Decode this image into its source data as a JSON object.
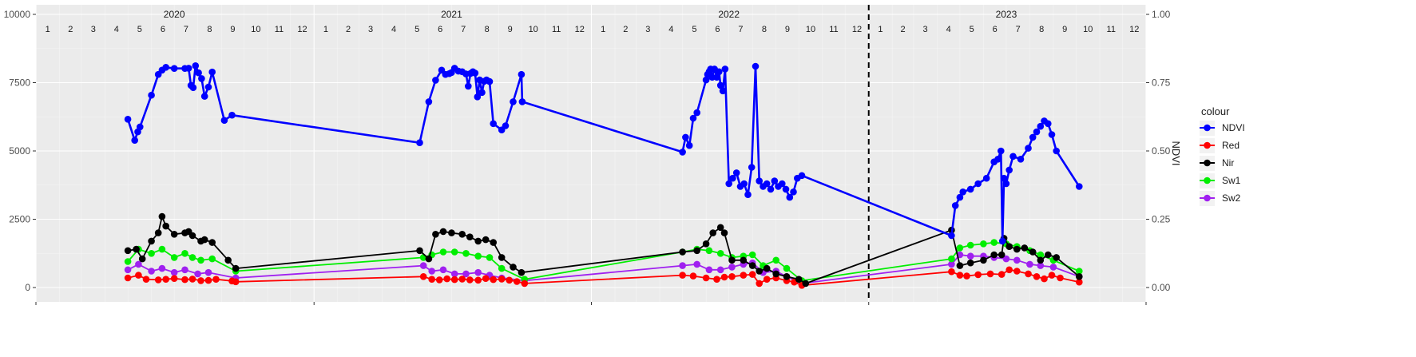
{
  "chart_data": {
    "type": "line",
    "title": "",
    "xlabel": "",
    "ylabel": "",
    "y2label": "NDVI",
    "ylim": [
      0,
      10000
    ],
    "y2lim": [
      0,
      1
    ],
    "yticks": [
      "0",
      "2500",
      "5000",
      "7500",
      "10000"
    ],
    "y2ticks": [
      "0.00",
      "0.25",
      "0.50",
      "0.75",
      "1.00"
    ],
    "grid": true,
    "legend_position": "right",
    "legend_title": "colour",
    "years": [
      "2020",
      "2021",
      "2022",
      "2023"
    ],
    "months": [
      "1",
      "2",
      "3",
      "4",
      "5",
      "6",
      "7",
      "8",
      "9",
      "10",
      "11",
      "12"
    ],
    "x_range": [
      "2020-01-01",
      "2024-01-01"
    ],
    "vline_date": "2023-01-01",
    "colors": {
      "NDVI": "#0000ff",
      "Red": "#ff0000",
      "Nir": "#000000",
      "Sw1": "#00ee00",
      "Sw2": "#a020f0"
    },
    "series": [
      {
        "name": "NDVI",
        "color": "#0000ff",
        "x": [
          "2020-05-01",
          "2020-05-10",
          "2020-05-14",
          "2020-05-17",
          "2020-06-01",
          "2020-06-10",
          "2020-06-15",
          "2020-06-20",
          "2020-07-01",
          "2020-07-15",
          "2020-07-20",
          "2020-07-23",
          "2020-07-26",
          "2020-07-29",
          "2020-08-02",
          "2020-08-06",
          "2020-08-10",
          "2020-08-15",
          "2020-08-20",
          "2020-09-05",
          "2020-09-15",
          "2021-05-20",
          "2021-06-01",
          "2021-06-10",
          "2021-06-18",
          "2021-06-23",
          "2021-06-28",
          "2021-07-01",
          "2021-07-05",
          "2021-07-10",
          "2021-07-15",
          "2021-07-20",
          "2021-07-23",
          "2021-07-26",
          "2021-07-29",
          "2021-08-01",
          "2021-08-04",
          "2021-08-07",
          "2021-08-10",
          "2021-08-13",
          "2021-08-16",
          "2021-08-20",
          "2021-08-25",
          "2021-09-05",
          "2021-09-10",
          "2021-09-20",
          "2021-10-01",
          "2021-10-02",
          "2022-05-01",
          "2022-05-05",
          "2022-05-10",
          "2022-05-15",
          "2022-05-20",
          "2022-06-01",
          "2022-06-03",
          "2022-06-05",
          "2022-06-07",
          "2022-06-09",
          "2022-06-12",
          "2022-06-15",
          "2022-06-18",
          "2022-06-20",
          "2022-06-23",
          "2022-06-26",
          "2022-07-01",
          "2022-07-06",
          "2022-07-11",
          "2022-07-16",
          "2022-07-21",
          "2022-07-26",
          "2022-07-31",
          "2022-08-05",
          "2022-08-10",
          "2022-08-15",
          "2022-08-20",
          "2022-08-25",
          "2022-08-30",
          "2022-09-04",
          "2022-09-09",
          "2022-09-14",
          "2022-09-19",
          "2022-09-24",
          "2022-09-29",
          "2022-10-05",
          "2023-04-20",
          "2023-04-25",
          "2023-05-01",
          "2023-05-05",
          "2023-05-15",
          "2023-05-25",
          "2023-06-05",
          "2023-06-15",
          "2023-06-20",
          "2023-06-24",
          "2023-06-26",
          "2023-06-28",
          "2023-07-01",
          "2023-07-05",
          "2023-07-10",
          "2023-07-20",
          "2023-07-30",
          "2023-08-05",
          "2023-08-10",
          "2023-08-15",
          "2023-08-20",
          "2023-08-25",
          "2023-08-30",
          "2023-09-05",
          "2023-10-05"
        ],
        "y": [
          0.616,
          0.539,
          0.57,
          0.588,
          0.704,
          0.78,
          0.796,
          0.806,
          0.802,
          0.802,
          0.803,
          0.74,
          0.732,
          0.812,
          0.786,
          0.765,
          0.7,
          0.734,
          0.789,
          0.612,
          0.631,
          0.53,
          0.68,
          0.759,
          0.796,
          0.78,
          0.783,
          0.787,
          0.803,
          0.792,
          0.79,
          0.782,
          0.737,
          0.784,
          0.79,
          0.785,
          0.698,
          0.76,
          0.714,
          0.755,
          0.76,
          0.754,
          0.6,
          0.577,
          0.592,
          0.68,
          0.78,
          0.68,
          0.496,
          0.55,
          0.52,
          0.62,
          0.64,
          0.76,
          0.78,
          0.79,
          0.8,
          0.77,
          0.8,
          0.77,
          0.79,
          0.74,
          0.72,
          0.8,
          0.38,
          0.4,
          0.42,
          0.37,
          0.38,
          0.34,
          0.44,
          0.81,
          0.39,
          0.37,
          0.38,
          0.36,
          0.39,
          0.37,
          0.38,
          0.36,
          0.33,
          0.35,
          0.4,
          0.41,
          0.19,
          0.3,
          0.33,
          0.35,
          0.36,
          0.38,
          0.4,
          0.46,
          0.47,
          0.5,
          0.17,
          0.4,
          0.38,
          0.43,
          0.48,
          0.47,
          0.51,
          0.55,
          0.57,
          0.59,
          0.61,
          0.6,
          0.56,
          0.5,
          0.37
        ]
      },
      {
        "name": "Red",
        "color": "#ff0000",
        "x": [
          "2020-05-01",
          "2020-05-15",
          "2020-05-25",
          "2020-06-10",
          "2020-06-20",
          "2020-07-01",
          "2020-07-15",
          "2020-07-25",
          "2020-08-05",
          "2020-08-15",
          "2020-08-25",
          "2020-09-15",
          "2020-09-20",
          "2021-05-25",
          "2021-06-05",
          "2021-06-15",
          "2021-06-25",
          "2021-07-05",
          "2021-07-15",
          "2021-07-25",
          "2021-08-05",
          "2021-08-15",
          "2021-08-25",
          "2021-09-05",
          "2021-09-15",
          "2021-09-25",
          "2021-10-05",
          "2022-05-01",
          "2022-05-15",
          "2022-06-01",
          "2022-06-15",
          "2022-06-25",
          "2022-07-05",
          "2022-07-20",
          "2022-08-01",
          "2022-08-10",
          "2022-08-20",
          "2022-09-01",
          "2022-09-15",
          "2022-09-25",
          "2022-10-05",
          "2023-04-20",
          "2023-05-01",
          "2023-05-10",
          "2023-05-25",
          "2023-06-10",
          "2023-06-25",
          "2023-07-05",
          "2023-07-15",
          "2023-07-30",
          "2023-08-10",
          "2023-08-20",
          "2023-08-30",
          "2023-09-10",
          "2023-10-05"
        ],
        "y": [
          350,
          450,
          300,
          280,
          300,
          330,
          290,
          310,
          250,
          260,
          300,
          240,
          210,
          400,
          300,
          280,
          320,
          290,
          310,
          280,
          270,
          330,
          290,
          310,
          270,
          220,
          150,
          450,
          420,
          350,
          300,
          380,
          400,
          450,
          480,
          150,
          300,
          350,
          250,
          200,
          80,
          580,
          450,
          420,
          470,
          500,
          480,
          650,
          600,
          500,
          400,
          320,
          450,
          350,
          200
        ]
      },
      {
        "name": "Nir",
        "color": "#000000",
        "x": [
          "2020-05-01",
          "2020-05-12",
          "2020-05-20",
          "2020-06-01",
          "2020-06-10",
          "2020-06-15",
          "2020-06-20",
          "2020-07-01",
          "2020-07-15",
          "2020-07-20",
          "2020-07-25",
          "2020-08-05",
          "2020-08-10",
          "2020-08-20",
          "2020-09-10",
          "2020-09-20",
          "2021-05-20",
          "2021-06-01",
          "2021-06-10",
          "2021-06-20",
          "2021-07-01",
          "2021-07-15",
          "2021-07-25",
          "2021-08-05",
          "2021-08-15",
          "2021-08-25",
          "2021-09-05",
          "2021-09-20",
          "2021-10-01",
          "2022-05-01",
          "2022-05-20",
          "2022-06-01",
          "2022-06-10",
          "2022-06-20",
          "2022-06-25",
          "2022-07-05",
          "2022-07-20",
          "2022-08-01",
          "2022-08-10",
          "2022-08-20",
          "2022-09-01",
          "2022-09-15",
          "2022-10-01",
          "2022-10-10",
          "2023-04-20",
          "2023-05-01",
          "2023-05-15",
          "2023-06-01",
          "2023-06-15",
          "2023-06-25",
          "2023-06-28",
          "2023-07-05",
          "2023-07-15",
          "2023-07-25",
          "2023-08-05",
          "2023-08-15",
          "2023-08-25",
          "2023-09-05",
          "2023-10-05"
        ],
        "y": [
          1350,
          1400,
          1050,
          1700,
          2000,
          2600,
          2250,
          1950,
          2000,
          2050,
          1900,
          1700,
          1750,
          1650,
          1000,
          700,
          1350,
          1050,
          1950,
          2050,
          2000,
          1950,
          1850,
          1700,
          1750,
          1650,
          1100,
          750,
          550,
          1300,
          1350,
          1600,
          2000,
          2200,
          2000,
          1000,
          1000,
          800,
          600,
          700,
          500,
          400,
          300,
          150,
          2100,
          800,
          900,
          1000,
          1200,
          1200,
          1800,
          1500,
          1400,
          1450,
          1300,
          1000,
          1200,
          1100,
          400
        ]
      },
      {
        "name": "Sw1",
        "color": "#00ee00",
        "x": [
          "2020-05-01",
          "2020-05-15",
          "2020-06-01",
          "2020-06-15",
          "2020-07-01",
          "2020-07-15",
          "2020-07-25",
          "2020-08-05",
          "2020-08-20",
          "2020-09-20",
          "2021-05-25",
          "2021-06-05",
          "2021-06-20",
          "2021-07-05",
          "2021-07-20",
          "2021-08-05",
          "2021-08-20",
          "2021-09-05",
          "2021-10-05",
          "2022-05-01",
          "2022-05-20",
          "2022-06-05",
          "2022-06-20",
          "2022-07-05",
          "2022-07-20",
          "2022-08-01",
          "2022-08-15",
          "2022-09-01",
          "2022-09-15",
          "2022-10-05",
          "2023-04-20",
          "2023-05-01",
          "2023-05-15",
          "2023-06-01",
          "2023-06-15",
          "2023-07-01",
          "2023-07-15",
          "2023-08-01",
          "2023-08-15",
          "2023-09-01",
          "2023-10-05"
        ],
        "y": [
          950,
          1400,
          1250,
          1400,
          1100,
          1250,
          1100,
          1000,
          1050,
          600,
          1100,
          1200,
          1300,
          1300,
          1250,
          1150,
          1100,
          700,
          300,
          1300,
          1400,
          1350,
          1250,
          1100,
          1150,
          1200,
          800,
          1000,
          700,
          250,
          1050,
          1450,
          1550,
          1600,
          1650,
          1600,
          1500,
          1350,
          1200,
          1000,
          600
        ]
      },
      {
        "name": "Sw2",
        "color": "#a020f0",
        "x": [
          "2020-05-01",
          "2020-05-15",
          "2020-06-01",
          "2020-06-15",
          "2020-07-01",
          "2020-07-15",
          "2020-08-01",
          "2020-08-15",
          "2020-09-20",
          "2021-05-25",
          "2021-06-05",
          "2021-06-20",
          "2021-07-05",
          "2021-07-20",
          "2021-08-05",
          "2021-08-20",
          "2021-09-05",
          "2021-10-05",
          "2022-05-01",
          "2022-05-20",
          "2022-06-05",
          "2022-06-20",
          "2022-07-05",
          "2022-07-20",
          "2022-08-01",
          "2022-08-15",
          "2022-09-01",
          "2022-09-15",
          "2022-10-05",
          "2023-04-20",
          "2023-05-01",
          "2023-05-15",
          "2023-06-01",
          "2023-06-15",
          "2023-07-01",
          "2023-07-15",
          "2023-08-01",
          "2023-08-15",
          "2023-09-01",
          "2023-10-05"
        ],
        "y": [
          650,
          850,
          600,
          700,
          550,
          650,
          500,
          550,
          350,
          800,
          600,
          650,
          500,
          500,
          550,
          450,
          350,
          250,
          800,
          850,
          650,
          650,
          750,
          850,
          900,
          550,
          600,
          400,
          150,
          850,
          1200,
          1150,
          1150,
          1100,
          1050,
          1000,
          850,
          800,
          750,
          400
        ]
      }
    ]
  }
}
